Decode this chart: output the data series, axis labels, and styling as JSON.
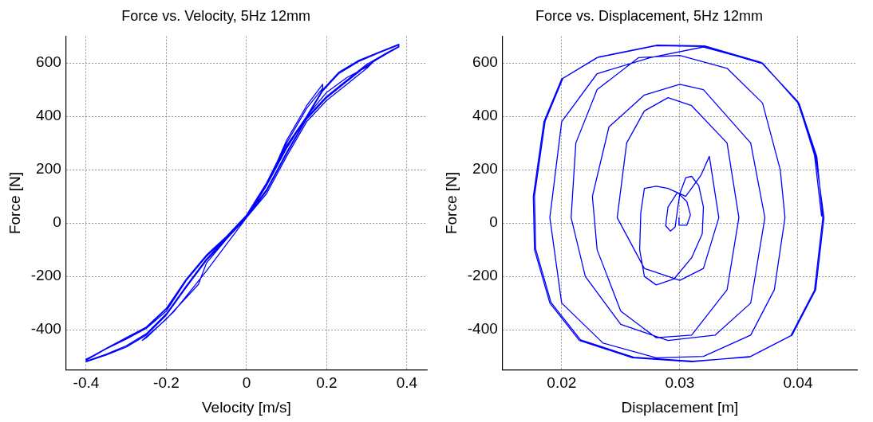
{
  "chart_data": [
    {
      "type": "line",
      "title": "Force vs. Velocity, 5Hz 12mm",
      "xlabel": "Velocity [m/s]",
      "ylabel": "Force [N]",
      "xlim": [
        -0.45,
        0.45
      ],
      "ylim": [
        -550,
        700
      ],
      "xticks": [
        -0.4,
        -0.2,
        0,
        0.2,
        0.4
      ],
      "yticks": [
        -400,
        -200,
        0,
        200,
        400,
        600
      ],
      "grid": true,
      "series": [
        {
          "color": "#0000ff",
          "x": [
            0,
            0.05,
            0.1,
            0.15,
            0.19,
            0.19,
            0.15,
            0.1,
            0.05,
            0,
            -0.05,
            -0.1,
            -0.12,
            -0.2,
            -0.26,
            -0.25,
            -0.18,
            -0.1,
            0,
            0.05,
            0.1,
            0.15,
            0.2,
            0.25,
            0.3,
            0.32,
            0.3,
            0.25,
            0.2,
            0.15,
            0.1,
            0.05,
            0,
            -0.05,
            -0.1,
            -0.15,
            -0.2,
            -0.25,
            -0.3,
            -0.35,
            -0.4,
            -0.4,
            -0.35,
            -0.3,
            -0.25,
            -0.2,
            -0.15,
            -0.1,
            -0.05,
            0,
            0.05,
            0.1,
            0.15,
            0.2,
            0.25,
            0.3,
            0.35,
            0.38,
            0.38,
            0.33,
            0.28,
            0.23,
            0.19,
            0.15,
            0.1,
            0.05,
            0,
            -0.05,
            -0.1,
            -0.15,
            -0.2,
            -0.25,
            -0.3,
            -0.35,
            -0.4,
            -0.4,
            -0.35,
            -0.3,
            -0.25,
            -0.2,
            -0.15,
            -0.1,
            -0.05,
            0,
            0.05,
            0.1,
            0.15,
            0.2,
            0.25,
            0.3,
            0.35,
            0.38,
            0.38,
            0.33,
            0.28,
            0.23,
            0.19,
            0.15,
            0.1,
            0.05,
            0,
            -0.05,
            -0.1,
            -0.15,
            -0.2,
            -0.25,
            -0.3,
            -0.35,
            -0.4
          ],
          "values": [
            20,
            140,
            310,
            440,
            520,
            505,
            430,
            300,
            150,
            25,
            -60,
            -150,
            -230,
            -360,
            -440,
            -430,
            -330,
            -180,
            20,
            110,
            250,
            380,
            460,
            520,
            580,
            610,
            585,
            545,
            490,
            400,
            280,
            140,
            25,
            -55,
            -125,
            -215,
            -330,
            -395,
            -435,
            -472,
            -510,
            -520,
            -495,
            -465,
            -420,
            -345,
            -240,
            -140,
            -60,
            20,
            120,
            260,
            390,
            470,
            530,
            590,
            635,
            660,
            670,
            640,
            610,
            565,
            500,
            400,
            290,
            150,
            30,
            -50,
            -120,
            -210,
            -320,
            -390,
            -430,
            -470,
            -512,
            -518,
            -492,
            -460,
            -415,
            -340,
            -235,
            -135,
            -55,
            25,
            125,
            265,
            395,
            475,
            535,
            595,
            638,
            662,
            668,
            638,
            606,
            560,
            495,
            395,
            285,
            145,
            28,
            -52,
            -122,
            -212,
            -322,
            -392,
            -432,
            -472,
            -514
          ]
        }
      ]
    },
    {
      "type": "line",
      "title": "Force vs. Displacement, 5Hz 12mm",
      "xlabel": "Displacement [m]",
      "ylabel": "Force [N]",
      "xlim": [
        0.015,
        0.045
      ],
      "ylim": [
        -550,
        700
      ],
      "xticks": [
        0.02,
        0.03,
        0.04
      ],
      "yticks": [
        -400,
        -200,
        0,
        200,
        400,
        600
      ],
      "grid": true,
      "series": [
        {
          "color": "#0000ff",
          "x": [
            0.02993,
            0.02993,
            0.0306,
            0.0309,
            0.0306,
            0.0298,
            0.029,
            0.0288,
            0.0292,
            0.0296,
            0.03,
            0.0305,
            0.031,
            0.0316,
            0.032,
            0.0319,
            0.031,
            0.0295,
            0.028,
            0.027,
            0.0266,
            0.0267,
            0.027,
            0.028,
            0.029,
            0.0305,
            0.0318,
            0.0325,
            0.0333,
            0.032,
            0.03,
            0.027,
            0.0247,
            0.0255,
            0.027,
            0.029,
            0.031,
            0.034,
            0.035,
            0.034,
            0.031,
            0.028,
            0.025,
            0.023,
            0.0226,
            0.024,
            0.027,
            0.03,
            0.032,
            0.036,
            0.0372,
            0.036,
            0.033,
            0.029,
            0.025,
            0.022,
            0.0208,
            0.0212,
            0.023,
            0.0265,
            0.03,
            0.034,
            0.037,
            0.0385,
            0.0389,
            0.038,
            0.036,
            0.032,
            0.028,
            0.0235,
            0.02,
            0.019,
            0.02,
            0.023,
            0.0275,
            0.032,
            0.037,
            0.04,
            0.0415,
            0.0422,
            0.0415,
            0.0395,
            0.036,
            0.031,
            0.026,
            0.0215,
            0.019,
            0.0177,
            0.0176,
            0.0185,
            0.02,
            0.023,
            0.028,
            0.032,
            0.037,
            0.0401,
            0.0416,
            0.0421,
            0.0414,
            0.0394,
            0.0359,
            0.0311,
            0.0261,
            0.0216,
            0.0191,
            0.0178,
            0.0177,
            0.0186,
            0.0201,
            0.0231,
            0.0281,
            0.0321,
            0.0369,
            0.04,
            0.0414,
            0.042
          ],
          "values": [
            20,
            -8,
            -8,
            30,
            80,
            115,
            60,
            -10,
            -30,
            -15,
            110,
            170,
            175,
            140,
            60,
            -40,
            -130,
            -210,
            -232,
            -200,
            -100,
            40,
            130,
            138,
            130,
            100,
            180,
            250,
            20,
            -170,
            -215,
            -170,
            20,
            300,
            420,
            470,
            440,
            300,
            20,
            -250,
            -420,
            -430,
            -330,
            -100,
            100,
            360,
            480,
            520,
            500,
            300,
            20,
            -300,
            -420,
            -440,
            -380,
            -200,
            20,
            300,
            500,
            620,
            628,
            580,
            450,
            200,
            20,
            -250,
            -420,
            -500,
            -505,
            -450,
            -300,
            20,
            380,
            560,
            620,
            660,
            600,
            450,
            250,
            20,
            -250,
            -420,
            -500,
            -520,
            -505,
            -440,
            -300,
            -100,
            100,
            380,
            540,
            620,
            665,
            662,
            598,
            448,
            248,
            18,
            -252,
            -422,
            -502,
            -518,
            -503,
            -438,
            -298,
            -98,
            102,
            382,
            542,
            622,
            667,
            664,
            602,
            455,
            255,
            25
          ]
        }
      ]
    }
  ]
}
